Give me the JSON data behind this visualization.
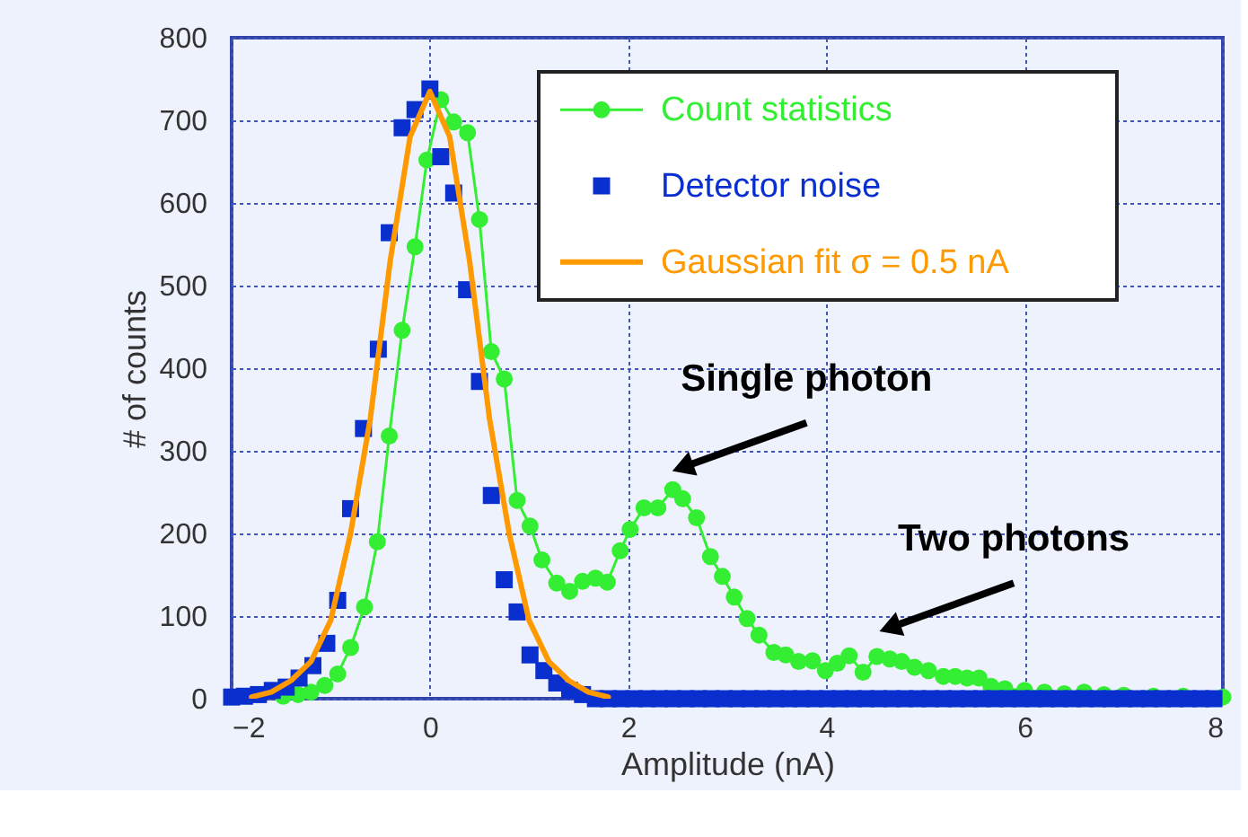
{
  "chart_data": {
    "type": "line",
    "xlabel": "Amplitude (nA)",
    "ylabel": "# of counts",
    "xlim": [
      -2,
      8
    ],
    "ylim": [
      0,
      800
    ],
    "xticks": [
      -2,
      0,
      2,
      4,
      6,
      8
    ],
    "yticks": [
      0,
      100,
      200,
      300,
      400,
      500,
      600,
      700,
      800
    ],
    "grid": true,
    "legend": "top right",
    "series": [
      {
        "name": "Count statistics",
        "marker": "circle",
        "color": "#33ee33",
        "x": [
          -1.48,
          -1.33,
          -1.2,
          -1.06,
          -0.93,
          -0.8,
          -0.66,
          -0.53,
          -0.41,
          -0.28,
          -0.15,
          -0.03,
          0.11,
          0.24,
          0.38,
          0.5,
          0.62,
          0.75,
          0.88,
          1.01,
          1.13,
          1.28,
          1.41,
          1.54,
          1.67,
          1.79,
          1.92,
          2.02,
          2.16,
          2.3,
          2.45,
          2.55,
          2.69,
          2.83,
          2.95,
          3.07,
          3.2,
          3.32,
          3.47,
          3.59,
          3.72,
          3.86,
          3.99,
          4.11,
          4.23,
          4.37,
          4.51,
          4.64,
          4.76,
          4.89,
          5.03,
          5.18,
          5.3,
          5.42,
          5.54,
          5.66,
          5.8,
          6.0,
          6.2,
          6.4,
          6.6,
          6.8,
          7.0,
          7.3,
          7.6,
          8.0
        ],
        "values": [
          3,
          5,
          8,
          16,
          30,
          62,
          111,
          190,
          318,
          446,
          547,
          652,
          725,
          698,
          685,
          580,
          420,
          387,
          240,
          209,
          168,
          140,
          130,
          142,
          146,
          141,
          179,
          205,
          231,
          231,
          253,
          242,
          219,
          172,
          148,
          123,
          97,
          77,
          56,
          53,
          45,
          46,
          34,
          43,
          52,
          32,
          51,
          48,
          45,
          38,
          34,
          27,
          27,
          25,
          25,
          15,
          12,
          10,
          8,
          6,
          8,
          5,
          4,
          3,
          3,
          2
        ]
      },
      {
        "name": "Detector noise",
        "type": "scatter",
        "marker": "square",
        "color": "#0a2fcf",
        "x": [
          -2.0,
          -1.87,
          -1.73,
          -1.59,
          -1.45,
          -1.32,
          -1.18,
          -1.04,
          -0.93,
          -0.8,
          -0.67,
          -0.52,
          -0.41,
          -0.28,
          -0.15,
          0.0,
          0.11,
          0.24,
          0.37,
          0.5,
          0.62,
          0.75,
          0.88,
          1.01,
          1.15,
          1.28,
          1.41,
          1.54,
          1.67,
          1.8,
          1.93,
          2.06,
          2.19,
          2.32,
          2.45,
          2.58,
          2.71,
          2.84,
          2.97,
          3.1,
          3.23,
          3.36,
          3.49,
          3.62,
          3.75,
          3.88,
          4.01,
          4.14,
          4.27,
          4.4,
          4.53,
          4.66,
          4.79,
          4.92,
          5.05,
          5.18,
          5.31,
          5.44,
          5.57,
          5.7,
          5.83,
          5.96,
          6.09,
          6.22,
          6.35,
          6.48,
          6.61,
          6.74,
          6.87,
          7.0,
          7.13,
          7.26,
          7.39,
          7.52,
          7.65,
          7.78,
          7.91
        ],
        "values": [
          2,
          3,
          5,
          10,
          14,
          25,
          40,
          67,
          119,
          230,
          327,
          423,
          564,
          691,
          713,
          738,
          656,
          612,
          495,
          384,
          246,
          144,
          105,
          53,
          34,
          19,
          10,
          5,
          0,
          0,
          0,
          0,
          0,
          0,
          0,
          0,
          0,
          0,
          0,
          0,
          0,
          0,
          0,
          0,
          0,
          0,
          0,
          0,
          0,
          0,
          0,
          0,
          0,
          0,
          0,
          0,
          0,
          0,
          0,
          0,
          0,
          0,
          0,
          0,
          0,
          0,
          0,
          0,
          0,
          0,
          0,
          0,
          0,
          0,
          0,
          0,
          0
        ]
      },
      {
        "name": "Gaussian fit σ = 0.5 nA",
        "type": "line",
        "marker": "none",
        "color": "#ff9900",
        "x": [
          -1.8,
          -1.6,
          -1.4,
          -1.2,
          -1.0,
          -0.8,
          -0.6,
          -0.4,
          -0.2,
          0.0,
          0.2,
          0.4,
          0.6,
          0.8,
          1.0,
          1.2,
          1.4,
          1.6,
          1.8
        ],
        "values": [
          2,
          8,
          22,
          45,
          95,
          200,
          340,
          530,
          680,
          735,
          680,
          530,
          340,
          200,
          95,
          45,
          22,
          8,
          2
        ]
      }
    ],
    "annotations": [
      {
        "text": "Single photon",
        "x": 2.55,
        "y": 242
      },
      {
        "text": "Two photons",
        "x": 4.64,
        "y": 48
      }
    ]
  }
}
